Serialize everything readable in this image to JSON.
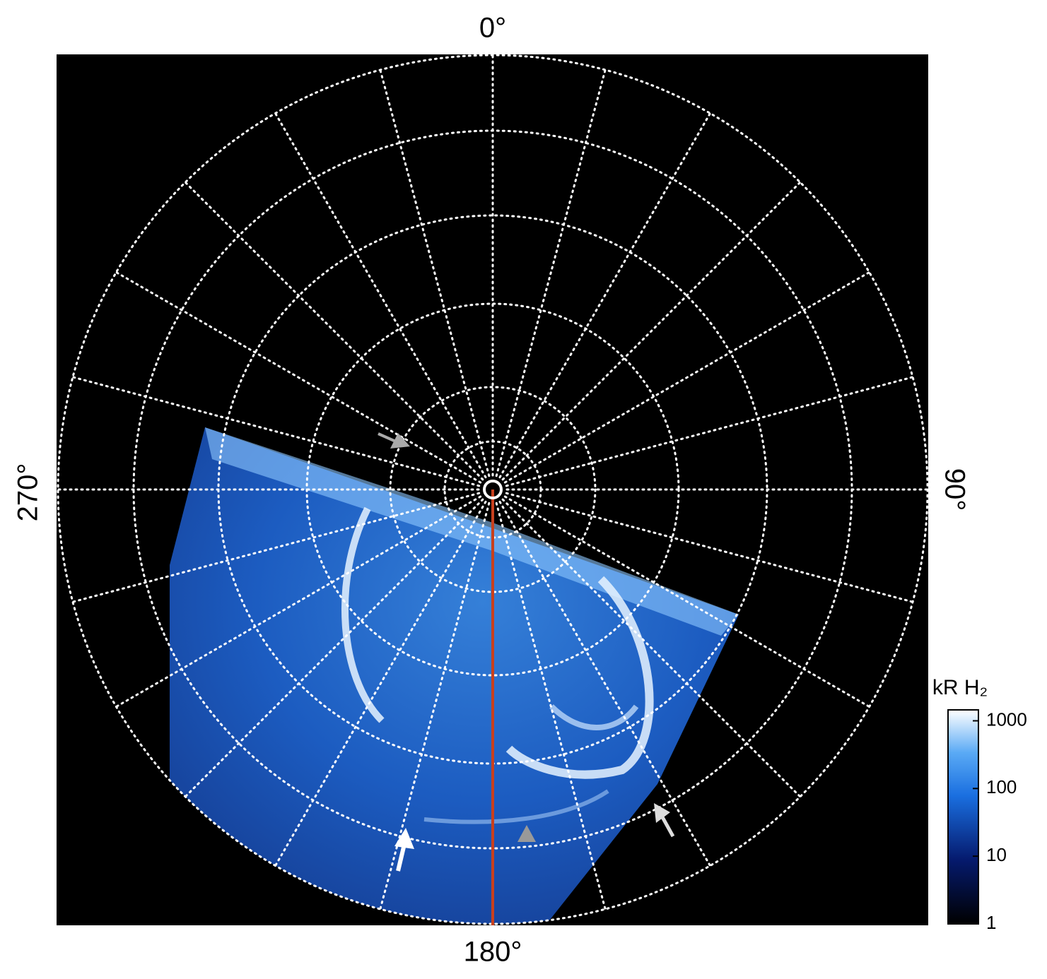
{
  "labels": {
    "top": "0°",
    "right": "90°",
    "bottom": "180°",
    "left": "270°"
  },
  "colorbar": {
    "label": "kR H₂",
    "ticks": [
      1,
      10,
      100,
      1000
    ],
    "lim": [
      1,
      1450
    ],
    "log": true
  }
}
